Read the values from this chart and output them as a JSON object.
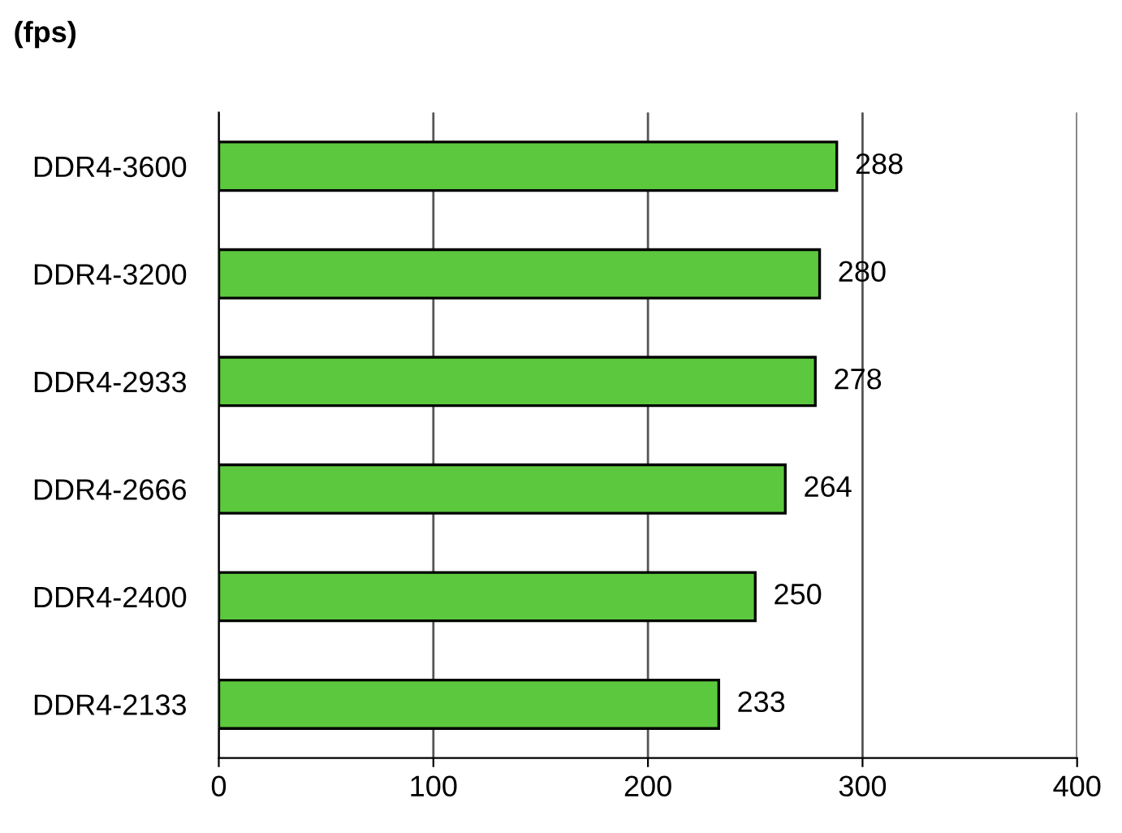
{
  "chart_data": {
    "type": "bar",
    "orientation": "horizontal",
    "title": "(fps)",
    "categories": [
      "DDR4-3600",
      "DDR4-3200",
      "DDR4-2933",
      "DDR4-2666",
      "DDR4-2400",
      "DDR4-2133"
    ],
    "values": [
      288,
      280,
      278,
      264,
      250,
      233
    ],
    "color": "#5cc83e",
    "xlim": [
      0,
      400
    ],
    "xticks": [
      0,
      100,
      200,
      300,
      400
    ],
    "grid": "x",
    "data_labels": true
  }
}
